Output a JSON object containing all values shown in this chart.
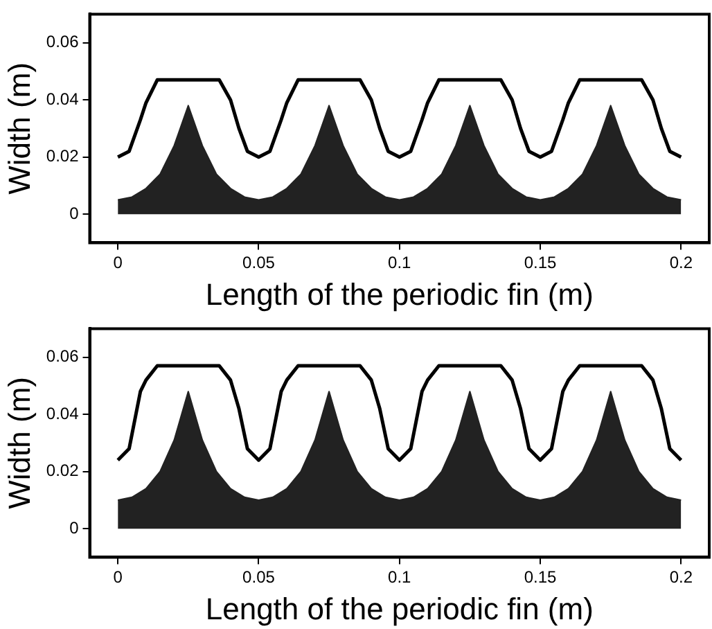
{
  "chart_data": [
    {
      "type": "line",
      "xlabel": "Length of the periodic fin (m)",
      "ylabel": "Width (m)",
      "xlim": [
        -0.01,
        0.21
      ],
      "ylim": [
        -0.01,
        0.07
      ],
      "xticks": [
        0,
        0.05,
        0.1,
        0.15,
        0.2
      ],
      "yticks": [
        0,
        0.02,
        0.04,
        0.06
      ],
      "grid": false,
      "legend": false,
      "marker": "none",
      "series": [
        {
          "type": "area",
          "color": "#222222",
          "x": [
            0,
            0.005,
            0.01,
            0.015,
            0.02,
            0.025,
            0.03,
            0.035,
            0.04,
            0.045,
            0.05,
            0.055,
            0.06,
            0.065,
            0.07,
            0.075,
            0.08,
            0.085,
            0.09,
            0.095,
            0.1,
            0.105,
            0.11,
            0.115,
            0.12,
            0.125,
            0.13,
            0.135,
            0.14,
            0.145,
            0.15,
            0.155,
            0.16,
            0.165,
            0.17,
            0.175,
            0.18,
            0.185,
            0.19,
            0.195,
            0.2
          ],
          "values": [
            0.005,
            0.006,
            0.009,
            0.014,
            0.024,
            0.038,
            0.024,
            0.014,
            0.009,
            0.006,
            0.005,
            0.006,
            0.009,
            0.014,
            0.024,
            0.038,
            0.024,
            0.014,
            0.009,
            0.006,
            0.005,
            0.006,
            0.009,
            0.014,
            0.024,
            0.038,
            0.024,
            0.014,
            0.009,
            0.006,
            0.005,
            0.006,
            0.009,
            0.014,
            0.024,
            0.038,
            0.024,
            0.014,
            0.009,
            0.006,
            0.005
          ]
        },
        {
          "type": "line",
          "color": "#000000",
          "x": [
            0,
            0.004,
            0.008,
            0.01,
            0.014,
            0.036,
            0.04,
            0.043,
            0.046,
            0.05,
            0.054,
            0.058,
            0.06,
            0.064,
            0.086,
            0.09,
            0.093,
            0.096,
            0.1,
            0.104,
            0.108,
            0.11,
            0.114,
            0.136,
            0.14,
            0.143,
            0.146,
            0.15,
            0.154,
            0.158,
            0.16,
            0.164,
            0.186,
            0.19,
            0.193,
            0.196,
            0.2
          ],
          "values": [
            0.02,
            0.022,
            0.033,
            0.039,
            0.047,
            0.047,
            0.04,
            0.03,
            0.022,
            0.02,
            0.022,
            0.033,
            0.039,
            0.047,
            0.047,
            0.04,
            0.03,
            0.022,
            0.02,
            0.022,
            0.033,
            0.039,
            0.047,
            0.047,
            0.04,
            0.03,
            0.022,
            0.02,
            0.022,
            0.033,
            0.039,
            0.047,
            0.047,
            0.04,
            0.03,
            0.022,
            0.02
          ]
        }
      ]
    },
    {
      "type": "line",
      "xlabel": "Length of the periodic fin (m)",
      "ylabel": "Width (m)",
      "xlim": [
        -0.01,
        0.21
      ],
      "ylim": [
        -0.01,
        0.07
      ],
      "xticks": [
        0,
        0.05,
        0.1,
        0.15,
        0.2
      ],
      "yticks": [
        0,
        0.02,
        0.04,
        0.06
      ],
      "grid": false,
      "legend": false,
      "marker": "none",
      "series": [
        {
          "type": "area",
          "color": "#222222",
          "x": [
            0,
            0.005,
            0.01,
            0.015,
            0.02,
            0.025,
            0.03,
            0.035,
            0.04,
            0.045,
            0.05,
            0.055,
            0.06,
            0.065,
            0.07,
            0.075,
            0.08,
            0.085,
            0.09,
            0.095,
            0.1,
            0.105,
            0.11,
            0.115,
            0.12,
            0.125,
            0.13,
            0.135,
            0.14,
            0.145,
            0.15,
            0.155,
            0.16,
            0.165,
            0.17,
            0.175,
            0.18,
            0.185,
            0.19,
            0.195,
            0.2
          ],
          "values": [
            0.01,
            0.011,
            0.014,
            0.02,
            0.031,
            0.048,
            0.031,
            0.02,
            0.014,
            0.011,
            0.01,
            0.011,
            0.014,
            0.02,
            0.031,
            0.048,
            0.031,
            0.02,
            0.014,
            0.011,
            0.01,
            0.011,
            0.014,
            0.02,
            0.031,
            0.048,
            0.031,
            0.02,
            0.014,
            0.011,
            0.01,
            0.011,
            0.014,
            0.02,
            0.031,
            0.048,
            0.031,
            0.02,
            0.014,
            0.011,
            0.01
          ]
        },
        {
          "type": "line",
          "color": "#000000",
          "x": [
            0,
            0.004,
            0.008,
            0.01,
            0.014,
            0.036,
            0.04,
            0.043,
            0.046,
            0.05,
            0.054,
            0.058,
            0.06,
            0.064,
            0.086,
            0.09,
            0.093,
            0.096,
            0.1,
            0.104,
            0.108,
            0.11,
            0.114,
            0.136,
            0.14,
            0.143,
            0.146,
            0.15,
            0.154,
            0.158,
            0.16,
            0.164,
            0.186,
            0.19,
            0.193,
            0.196,
            0.2
          ],
          "values": [
            0.024,
            0.028,
            0.048,
            0.052,
            0.057,
            0.057,
            0.052,
            0.042,
            0.028,
            0.024,
            0.028,
            0.048,
            0.052,
            0.057,
            0.057,
            0.052,
            0.042,
            0.028,
            0.024,
            0.028,
            0.048,
            0.052,
            0.057,
            0.057,
            0.052,
            0.042,
            0.028,
            0.024,
            0.028,
            0.048,
            0.052,
            0.057,
            0.057,
            0.052,
            0.042,
            0.028,
            0.024
          ]
        }
      ]
    }
  ]
}
